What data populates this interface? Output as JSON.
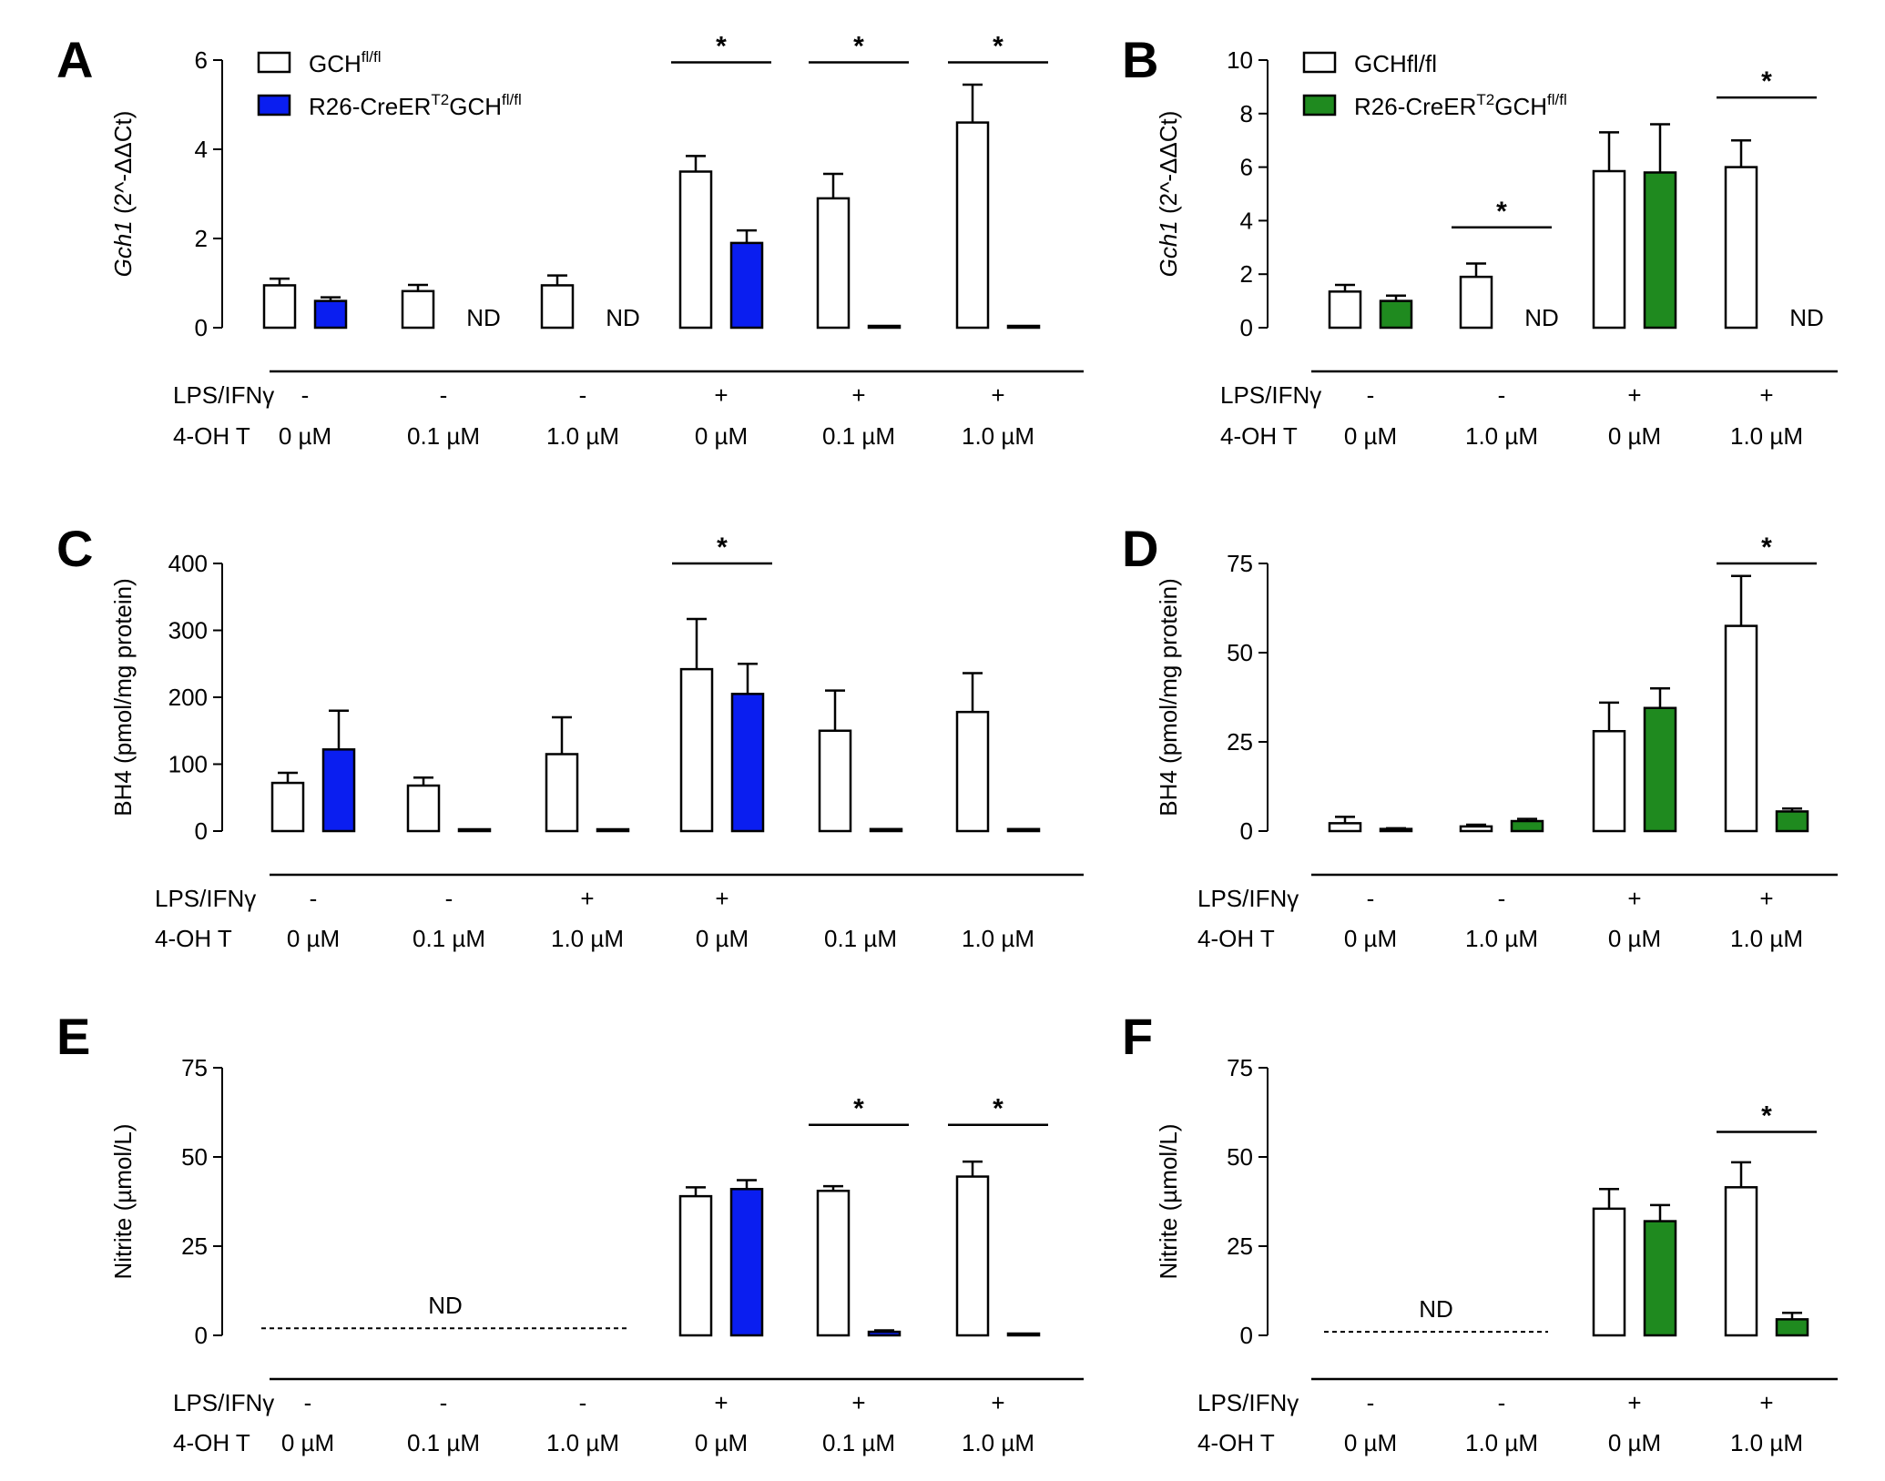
{
  "colors": {
    "control": "#ffffff",
    "panel_ACE": "#0a1ef0",
    "panel_BDF": "#1f8a1f",
    "stroke": "#000000"
  },
  "chart_data": [
    {
      "panel": "A",
      "type": "bar",
      "ylabel_italic": "Gch1",
      "ylabel_rest": " (2^-ΔΔCt)",
      "ylim": [
        0,
        6
      ],
      "yticks": [
        "0",
        "2",
        "4",
        "6"
      ],
      "legend": {
        "entries": [
          {
            "base": "GCH",
            "sup": "fl/fl"
          },
          {
            "base": "R26-CreER",
            "sup": "T2",
            "base2": "GCH",
            "sup2": "fl/fl"
          }
        ]
      },
      "series": [
        {
          "name": "GCHfl/fl",
          "values": [
            0.95,
            0.82,
            0.95,
            3.5,
            2.9,
            4.6
          ],
          "errors": [
            0.15,
            0.14,
            0.22,
            0.35,
            0.55,
            0.85
          ]
        },
        {
          "name": "R26-CreERT2GCHfl/fl",
          "values": [
            0.6,
            0,
            0,
            1.9,
            0.03,
            0.01
          ],
          "errors": [
            0.08,
            0,
            0,
            0.28,
            0,
            0
          ]
        }
      ],
      "nd": [
        false,
        true,
        true,
        false,
        false,
        false
      ],
      "significance": [
        {
          "group": 3,
          "label": "*",
          "level": 5.95
        },
        {
          "group": 4,
          "label": "*",
          "level": 5.95
        },
        {
          "group": 5,
          "label": "*",
          "level": 5.95
        }
      ],
      "conditions": {
        "row1_label": "LPS/IFNγ",
        "row2_label": "4-OH T",
        "lps": [
          "-",
          "-",
          "-",
          "+",
          "+",
          "+"
        ],
        "oht": [
          "0 µM",
          "0.1 µM",
          "1.0 µM",
          "0 µM",
          "0.1 µM",
          "1.0 µM"
        ]
      }
    },
    {
      "panel": "B",
      "type": "bar",
      "ylabel_italic": "Gch1",
      "ylabel_rest": " (2^-ΔΔCt)",
      "ylim": [
        0,
        10
      ],
      "yticks": [
        "0",
        "2",
        "4",
        "6",
        "8",
        "10"
      ],
      "legend": {
        "entries": [
          {
            "base": "GCHfl/fl",
            "sup": ""
          },
          {
            "base": "R26-CreER",
            "sup": "T2",
            "base2": "GCH",
            "sup2": "fl/fl"
          }
        ]
      },
      "series": [
        {
          "name": "GCHfl/fl",
          "values": [
            1.35,
            1.9,
            5.85,
            6.0
          ],
          "errors": [
            0.25,
            0.5,
            1.45,
            1.0
          ]
        },
        {
          "name": "R26-CreERT2GCHfl/fl",
          "values": [
            1.0,
            0,
            5.8,
            0
          ],
          "errors": [
            0.2,
            0,
            1.8,
            0
          ]
        }
      ],
      "nd": [
        false,
        true,
        false,
        true
      ],
      "significance": [
        {
          "group": 1,
          "label": "*",
          "level": 3.75
        },
        {
          "group": 3,
          "label": "*",
          "level": 8.6
        }
      ],
      "conditions": {
        "row1_label": "LPS/IFNγ",
        "row2_label": "4-OH T",
        "lps": [
          "-",
          "-",
          "+",
          "+"
        ],
        "oht": [
          "0 µM",
          "1.0 µM",
          "0 µM",
          "1.0 µM"
        ]
      }
    },
    {
      "panel": "C",
      "type": "bar",
      "ylabel_italic": "",
      "ylabel_rest": "BH4 (pmol/mg protein)",
      "ylim": [
        0,
        400
      ],
      "yticks": [
        "0",
        "100",
        "200",
        "300",
        "400"
      ],
      "series": [
        {
          "name": "GCHfl/fl",
          "values": [
            72,
            68,
            115,
            242,
            150,
            178
          ],
          "errors": [
            15,
            12,
            55,
            75,
            60,
            58
          ]
        },
        {
          "name": "R26-CreERT2GCHfl/fl",
          "values": [
            122,
            1,
            1,
            205,
            3,
            3
          ],
          "errors": [
            58,
            0,
            0,
            45,
            0,
            0
          ]
        }
      ],
      "nd": [
        false,
        false,
        false,
        false,
        false,
        false
      ],
      "significance": [
        {
          "group": 3,
          "label": "*",
          "level": 400
        }
      ],
      "conditions": {
        "row1_label": "LPS/IFNγ",
        "row2_label": "4-OH T",
        "lps": [
          "-",
          "-",
          "+",
          "+",
          "",
          ""
        ],
        "oht": [
          "0 µM",
          "0.1 µM",
          "1.0 µM",
          "0 µM",
          "0.1 µM",
          "1.0 µM"
        ]
      }
    },
    {
      "panel": "D",
      "type": "bar",
      "ylabel_italic": "",
      "ylabel_rest": "BH4 (pmol/mg protein)",
      "ylim": [
        0,
        75
      ],
      "yticks": [
        "0",
        "25",
        "50",
        "75"
      ],
      "series": [
        {
          "name": "GCHfl/fl",
          "values": [
            2.2,
            1.3,
            28,
            57.5
          ],
          "errors": [
            1.8,
            0.5,
            8,
            14
          ]
        },
        {
          "name": "R26-CreERT2GCHfl/fl",
          "values": [
            0.6,
            2.8,
            34.5,
            5.5
          ],
          "errors": [
            0.2,
            0.6,
            5.5,
            0.8
          ]
        }
      ],
      "nd": [
        false,
        false,
        false,
        false
      ],
      "significance": [
        {
          "group": 3,
          "label": "*",
          "level": 75
        }
      ],
      "conditions": {
        "row1_label": "LPS/IFNγ",
        "row2_label": "4-OH T",
        "lps": [
          "-",
          "-",
          "+",
          "+"
        ],
        "oht": [
          "0 µM",
          "1.0 µM",
          "0 µM",
          "1.0 µM"
        ]
      }
    },
    {
      "panel": "E",
      "type": "bar",
      "ylabel_italic": "",
      "ylabel_rest": "Nitrite (µmol/L)",
      "ylim": [
        0,
        75
      ],
      "yticks": [
        "0",
        "25",
        "50",
        "75"
      ],
      "series": [
        {
          "name": "GCHfl/fl",
          "values": [
            null,
            null,
            null,
            39,
            40.5,
            44.5
          ],
          "errors": [
            0,
            0,
            0,
            2.5,
            1.3,
            4.2
          ]
        },
        {
          "name": "R26-CreERT2GCHfl/fl",
          "values": [
            null,
            null,
            null,
            41,
            1.0,
            0.5
          ],
          "errors": [
            0,
            0,
            0,
            2.5,
            0.4,
            0
          ]
        }
      ],
      "nd_dashed": {
        "label": "ND",
        "from_group": 0,
        "to_group": 2,
        "level": 2.5
      },
      "significance": [
        {
          "group": 4,
          "label": "*",
          "level": 59
        },
        {
          "group": 5,
          "label": "*",
          "level": 59
        }
      ],
      "conditions": {
        "row1_label": "LPS/IFNγ",
        "row2_label": "4-OH T",
        "lps": [
          "-",
          "-",
          "-",
          "+",
          "+",
          "+"
        ],
        "oht": [
          "0 µM",
          "0.1 µM",
          "1.0 µM",
          "0 µM",
          "0.1 µM",
          "1.0 µM"
        ]
      }
    },
    {
      "panel": "F",
      "type": "bar",
      "ylabel_italic": "",
      "ylabel_rest": "Nitrite (µmol/L)",
      "ylim": [
        0,
        75
      ],
      "yticks": [
        "0",
        "25",
        "50",
        "75"
      ],
      "series": [
        {
          "name": "GCHfl/fl",
          "values": [
            null,
            null,
            35.5,
            41.5
          ],
          "errors": [
            0,
            0,
            5.5,
            7
          ]
        },
        {
          "name": "R26-CreERT2GCHfl/fl",
          "values": [
            null,
            null,
            32,
            4.5
          ],
          "errors": [
            0,
            0,
            4.5,
            1.8
          ]
        }
      ],
      "nd_dashed": {
        "label": "ND",
        "from_group": 0,
        "to_group": 1,
        "level": 1.5
      },
      "significance": [
        {
          "group": 3,
          "label": "*",
          "level": 57
        }
      ],
      "conditions": {
        "row1_label": "LPS/IFNγ",
        "row2_label": "4-OH T",
        "lps": [
          "-",
          "-",
          "+",
          "+"
        ],
        "oht": [
          "0 µM",
          "1.0 µM",
          "0 µM",
          "1.0 µM"
        ]
      }
    }
  ]
}
